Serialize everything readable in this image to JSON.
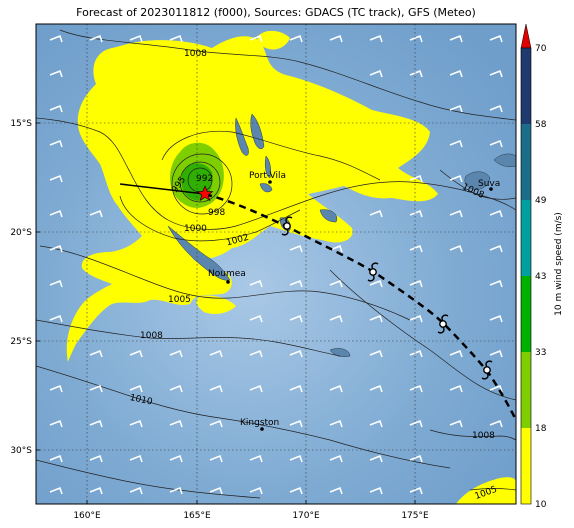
{
  "title": "Forecast of 2023011812 (f000), Sources: GDACS (TC track), GFS (Meteo)",
  "lat_labels": [
    "15°S",
    "20°S",
    "25°S",
    "30°S"
  ],
  "lon_labels": [
    "160°E",
    "165°E",
    "170°E",
    "175°E"
  ],
  "places": {
    "port_vila": "Port-Vila",
    "noumea": "Noumea",
    "suva": "Suva",
    "kingston": "Kingston"
  },
  "contours": {
    "c1008_top": "1008",
    "c992": "992",
    "c998": "998",
    "c995": "995",
    "c1000": "1000",
    "c1002": "1002",
    "c1005": "1005",
    "c1008_left": "1008",
    "c1010": "1010",
    "c1008_right": "1008",
    "c1008_east": "1008",
    "c1005_se": "1005"
  },
  "colorbar": {
    "label": "10 m wind speed (m/s)",
    "ticks": [
      "10",
      "18",
      "33",
      "43",
      "49",
      "58",
      "70"
    ],
    "colors": [
      "#ffff00",
      "#7fce00",
      "#00b000",
      "#00a0a0",
      "#1a6e8a",
      "#1e3a6e",
      "#2a2a5e"
    ],
    "extend_color": "#e00000"
  },
  "colors": {
    "ocean": "#7aa7cf",
    "land": "#5c86a8",
    "wind_gale": "#ffff00",
    "track": "#000000",
    "storm_center": "#ff0000"
  },
  "icons": [
    "storm-star-icon",
    "tropical-cyclone-icon"
  ]
}
